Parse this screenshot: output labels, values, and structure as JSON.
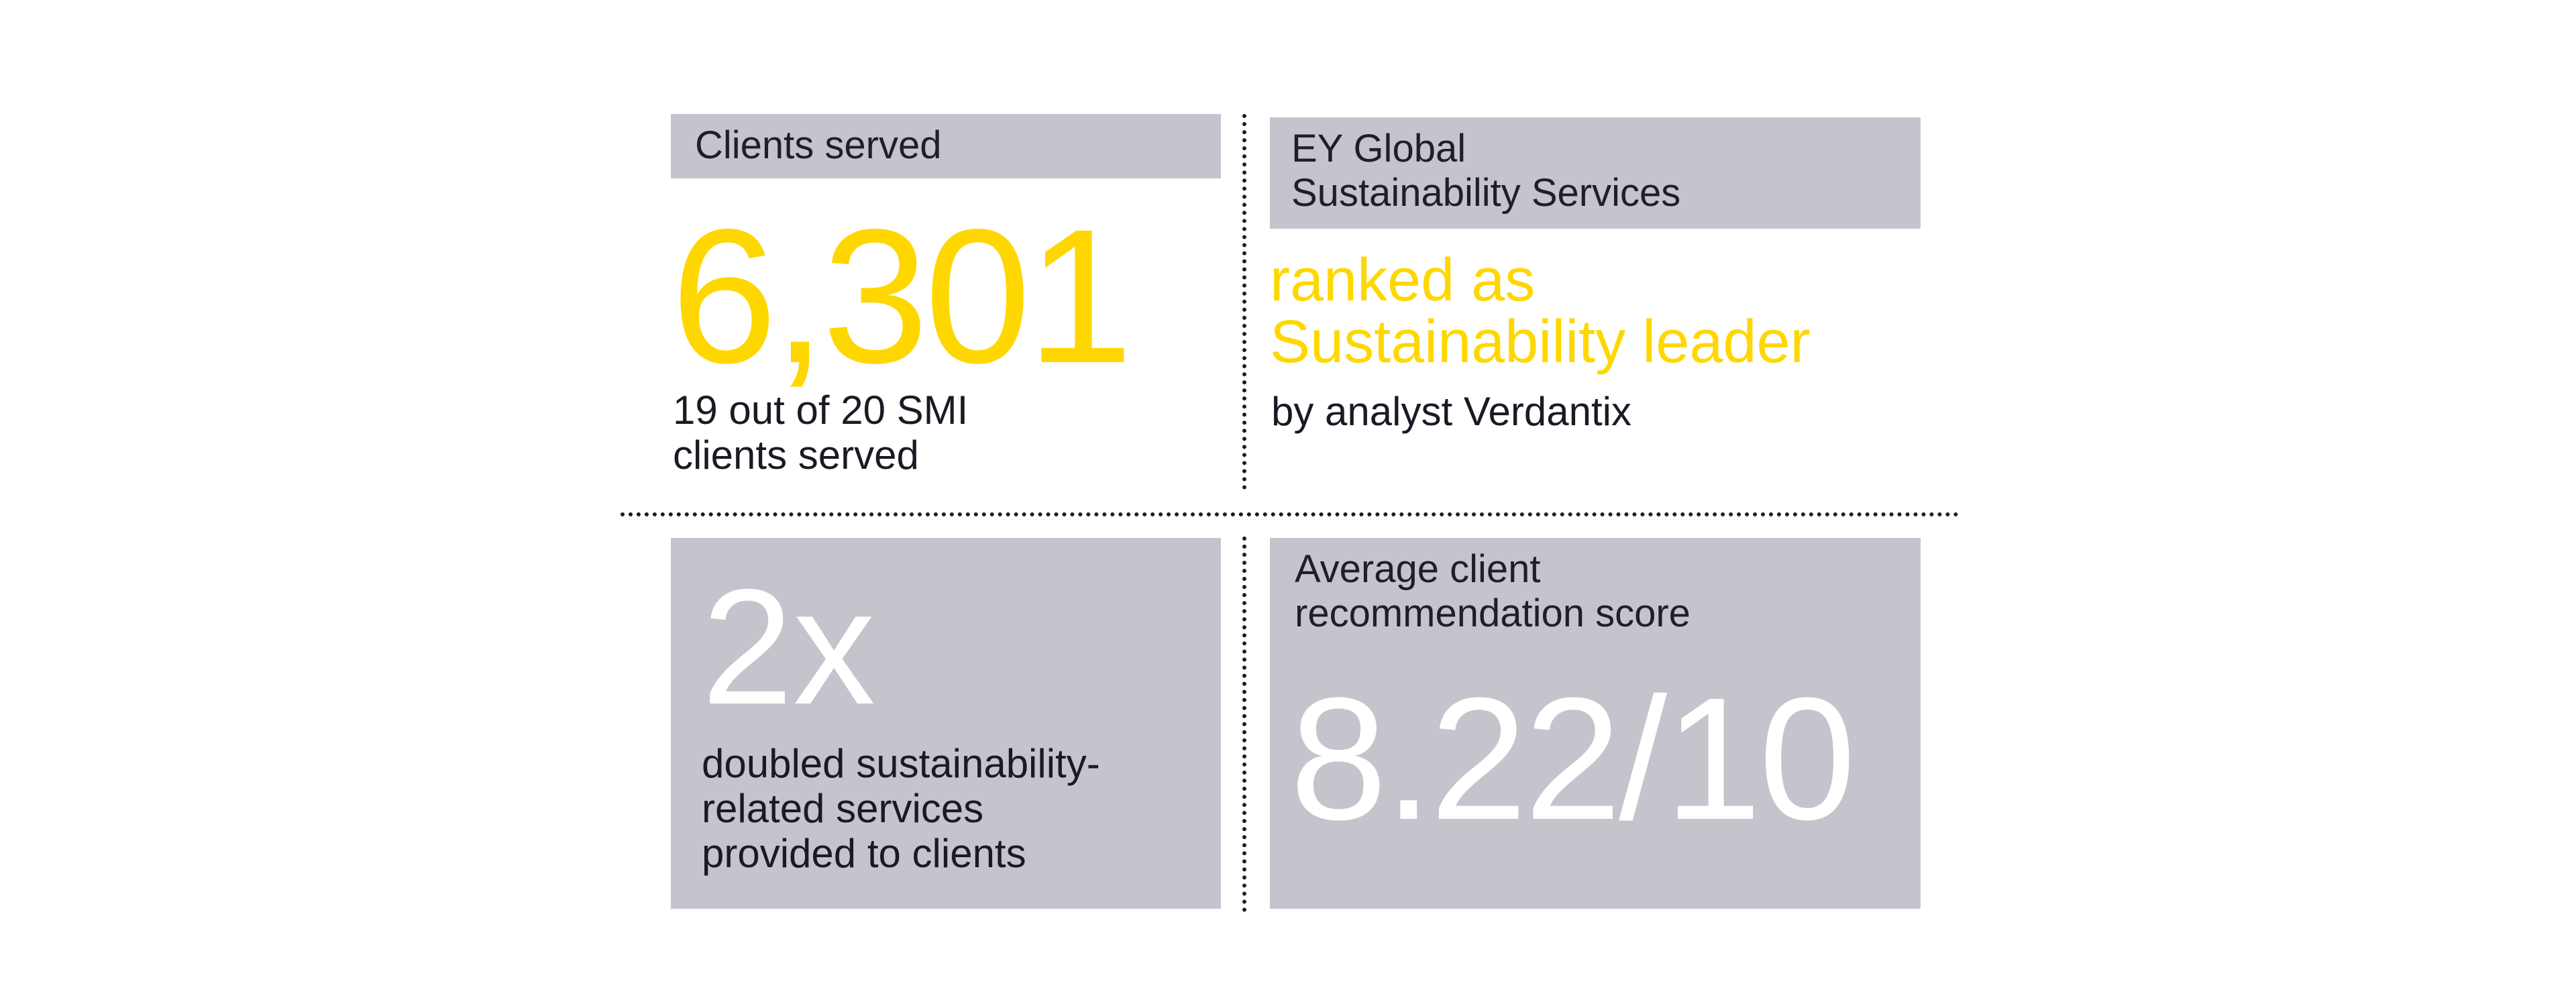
{
  "clients": {
    "label": "Clients served",
    "value": "6,301",
    "note": "19 out of 20 SMI\nclients served"
  },
  "ranking": {
    "label": "EY Global\nSustainability Services",
    "headline": "ranked as\nSustainability leader",
    "note": "by analyst Verdantix"
  },
  "growth": {
    "value": "2x",
    "note": "doubled sustainability-\nrelated services\nprovided to clients"
  },
  "score": {
    "label": "Average client\nrecommendation score",
    "value": "8.22/10"
  },
  "colors": {
    "accent_yellow": "#ffd700",
    "panel_gray": "#c4c4cc",
    "text_dark": "#1a1a24",
    "text_white": "#ffffff"
  }
}
